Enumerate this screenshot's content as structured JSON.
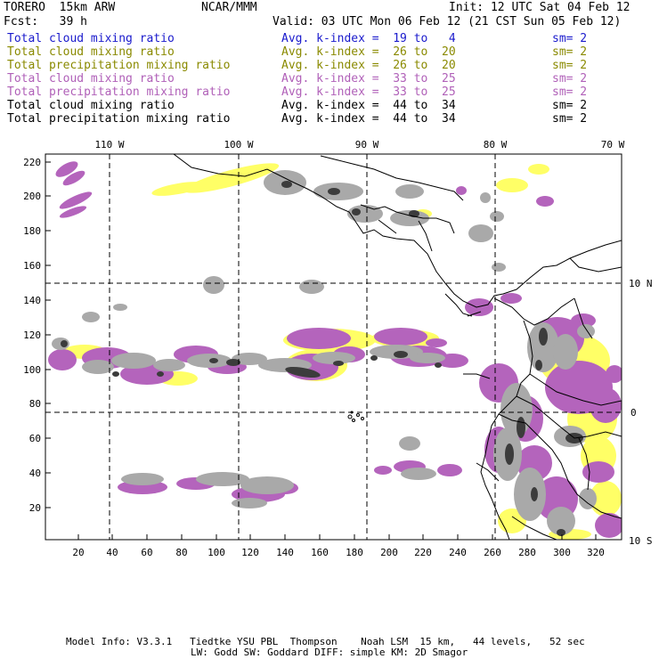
{
  "header": {
    "model": "TORERO  15km ARW",
    "org": "NCAR/MMM",
    "init": "Init: 12 UTC Sat 04 Feb 12",
    "fcst": "Fcst:   39 h",
    "valid": "Valid: 03 UTC Mon 06 Feb 12 (21 CST Sun 05 Feb 12)"
  },
  "legend": [
    {
      "field": "Total cloud mixing ratio",
      "index": "Avg. k-index =  19 to   4",
      "sm": "sm= 2",
      "color": "#1a1acc"
    },
    {
      "field": "Total cloud mixing ratio",
      "index": "Avg. k-index =  26 to  20",
      "sm": "sm= 2",
      "color": "#8a8a00"
    },
    {
      "field": "Total precipitation mixing ratio",
      "index": "Avg. k-index =  26 to  20",
      "sm": "sm= 2",
      "color": "#8a8a00"
    },
    {
      "field": "Total cloud mixing ratio",
      "index": "Avg. k-index =  33 to  25",
      "sm": "sm= 2",
      "color": "#b060b8"
    },
    {
      "field": "Total precipitation mixing ratio",
      "index": "Avg. k-index =  33 to  25",
      "sm": "sm= 2",
      "color": "#b060b8"
    },
    {
      "field": "Total cloud mixing ratio",
      "index": "Avg. k-index =  44 to  34",
      "sm": "sm= 2",
      "color": "#000000"
    },
    {
      "field": "Total precipitation mixing ratio",
      "index": "Avg. k-index =  44 to  34",
      "sm": "sm= 2",
      "color": "#000000"
    }
  ],
  "map": {
    "lon_labels": [
      "110 W",
      "100 W",
      "90 W",
      "80 W",
      "70 W"
    ],
    "lat_labels": [
      "10 N",
      "0",
      "10 S"
    ],
    "y_ticks": [
      "220",
      "200",
      "180",
      "160",
      "140",
      "120",
      "100",
      "80",
      "60",
      "40",
      "20"
    ],
    "x_ticks": [
      "20",
      "40",
      "60",
      "80",
      "100",
      "120",
      "140",
      "160",
      "180",
      "200",
      "220",
      "240",
      "260",
      "280",
      "300",
      "320"
    ],
    "colors": {
      "gray": "#a9a9a9",
      "dark": "#3c3c3c",
      "yellow": "#ffff66",
      "magenta": "#b464bc"
    }
  },
  "footer": {
    "line1": "Model Info: V3.3.1   Tiedtke YSU PBL  Thompson    Noah LSM  15 km,   44 levels,   52 sec",
    "line2": "LW: Godd SW: Goddard DIFF: simple KM: 2D Smagor"
  }
}
